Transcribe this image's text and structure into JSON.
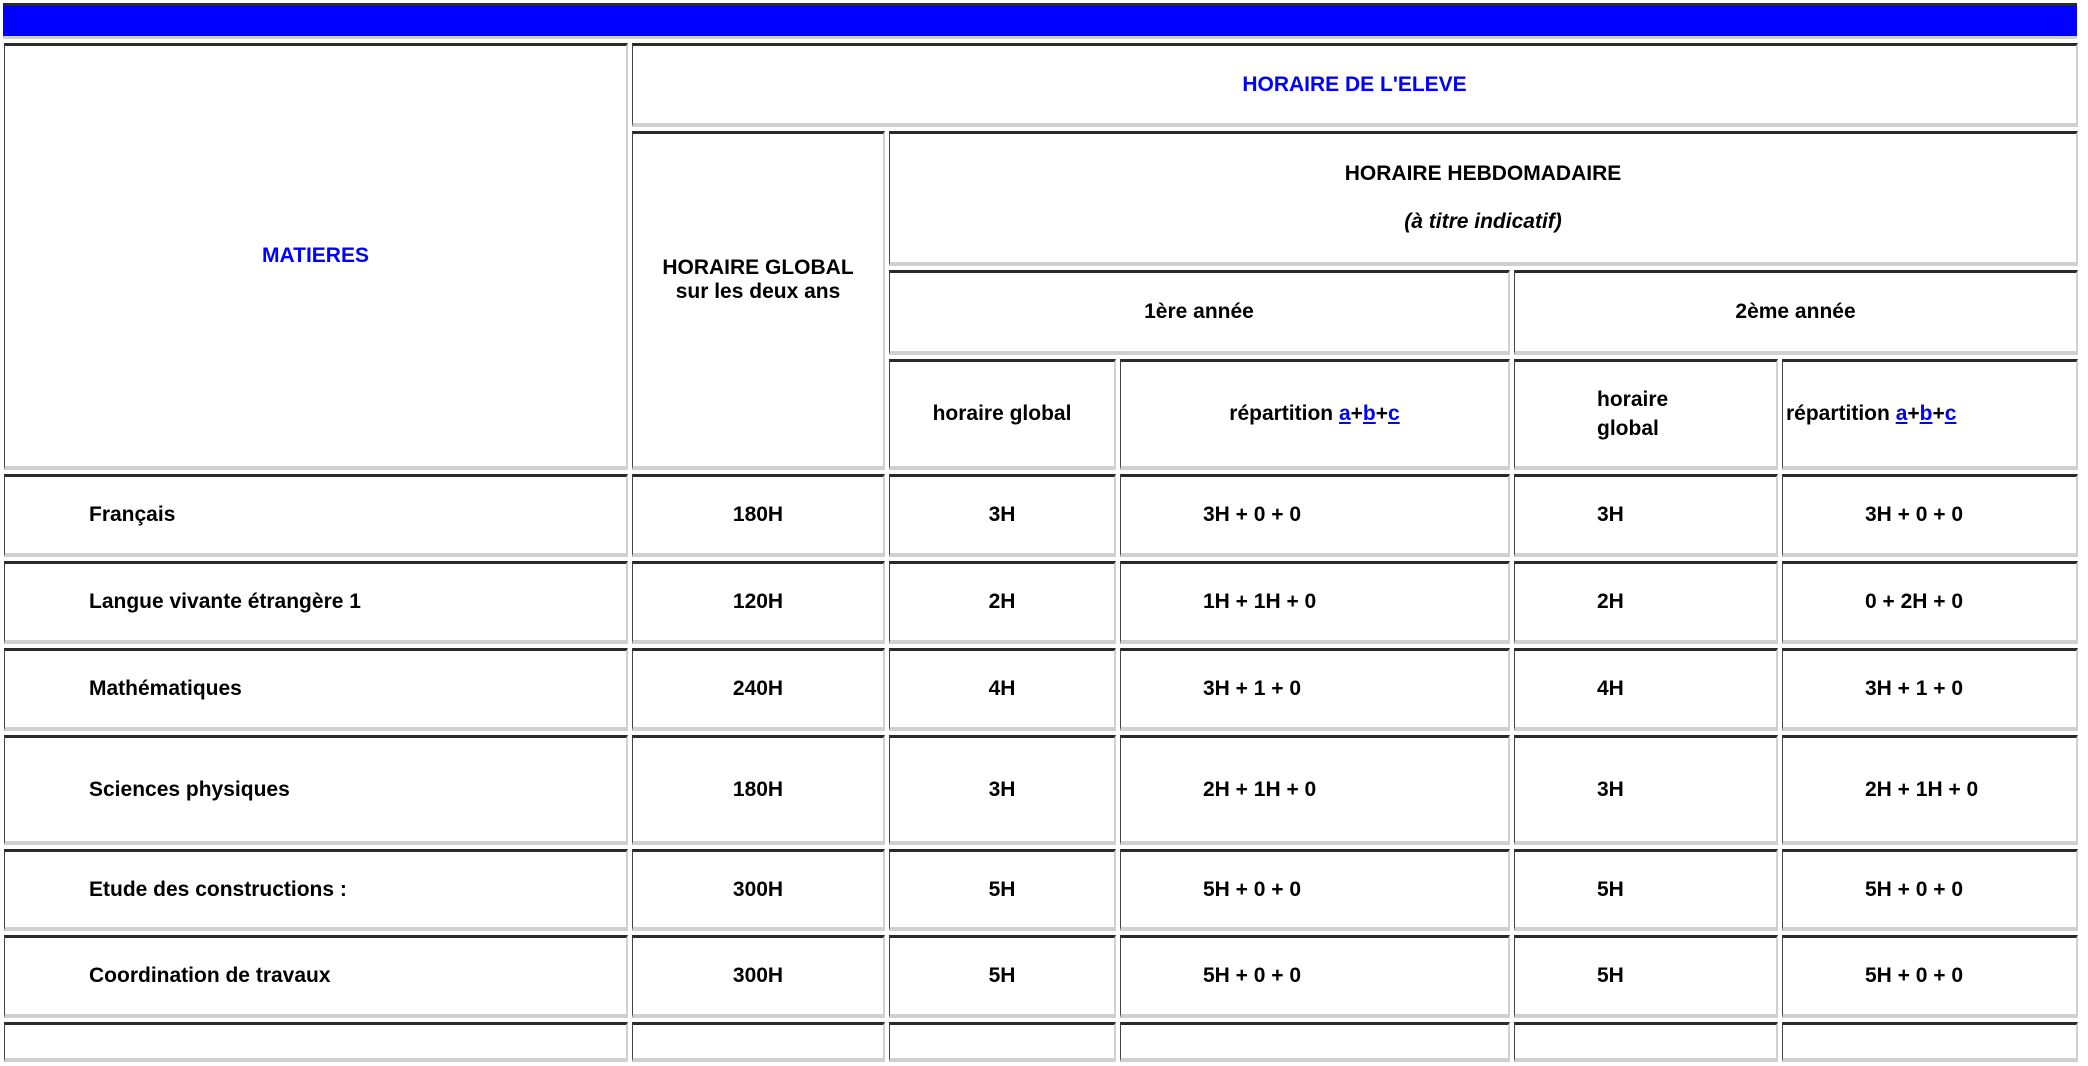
{
  "header": {
    "matieres": "MATIERES",
    "horaire_eleve": "HORAIRE DE L'ELEVE",
    "horaire_global_line1": "HORAIRE GLOBAL",
    "horaire_global_line2": "sur les deux ans",
    "hebdo": "HORAIRE HEBDOMADAIRE",
    "hebdo_note": "(à titre indicatif)",
    "annee1": "1ère année",
    "annee2": "2ème année",
    "horaire_global_1": "horaire global",
    "horaire_global_2": "horaire global",
    "repartition": "répartition",
    "link_a": "a",
    "link_b": "b",
    "link_c": "c",
    "plus": "+"
  },
  "rows": [
    {
      "matiere": "Français",
      "global": "180H",
      "a1_global": "3H",
      "a1_rep": "3H + 0 + 0",
      "a2_global": "3H",
      "a2_rep": "3H + 0 + 0"
    },
    {
      "matiere": "Langue vivante étrangère 1",
      "global": "120H",
      "a1_global": "2H",
      "a1_rep": "1H + 1H + 0",
      "a2_global": "2H",
      "a2_rep": "0 + 2H + 0"
    },
    {
      "matiere": "Mathématiques",
      "global": "240H",
      "a1_global": "4H",
      "a1_rep": "3H + 1 + 0",
      "a2_global": "4H",
      "a2_rep": "3H + 1 + 0"
    },
    {
      "matiere": "Sciences physiques",
      "global": "180H",
      "a1_global": "3H",
      "a1_rep": "2H + 1H + 0",
      "a2_global": "3H",
      "a2_rep": "2H + 1H + 0"
    },
    {
      "matiere": "Etude des constructions :",
      "global": "300H",
      "a1_global": "5H",
      "a1_rep": "5H + 0 + 0",
      "a2_global": "5H",
      "a2_rep": "5H + 0 + 0"
    },
    {
      "matiere": "Coordination de travaux",
      "global": "300H",
      "a1_global": "5H",
      "a1_rep": "5H + 0 + 0",
      "a2_global": "5H",
      "a2_rep": "5H + 0 + 0"
    }
  ],
  "colors": {
    "banner": "#0000ff",
    "heading_blue": "#0000ff"
  }
}
